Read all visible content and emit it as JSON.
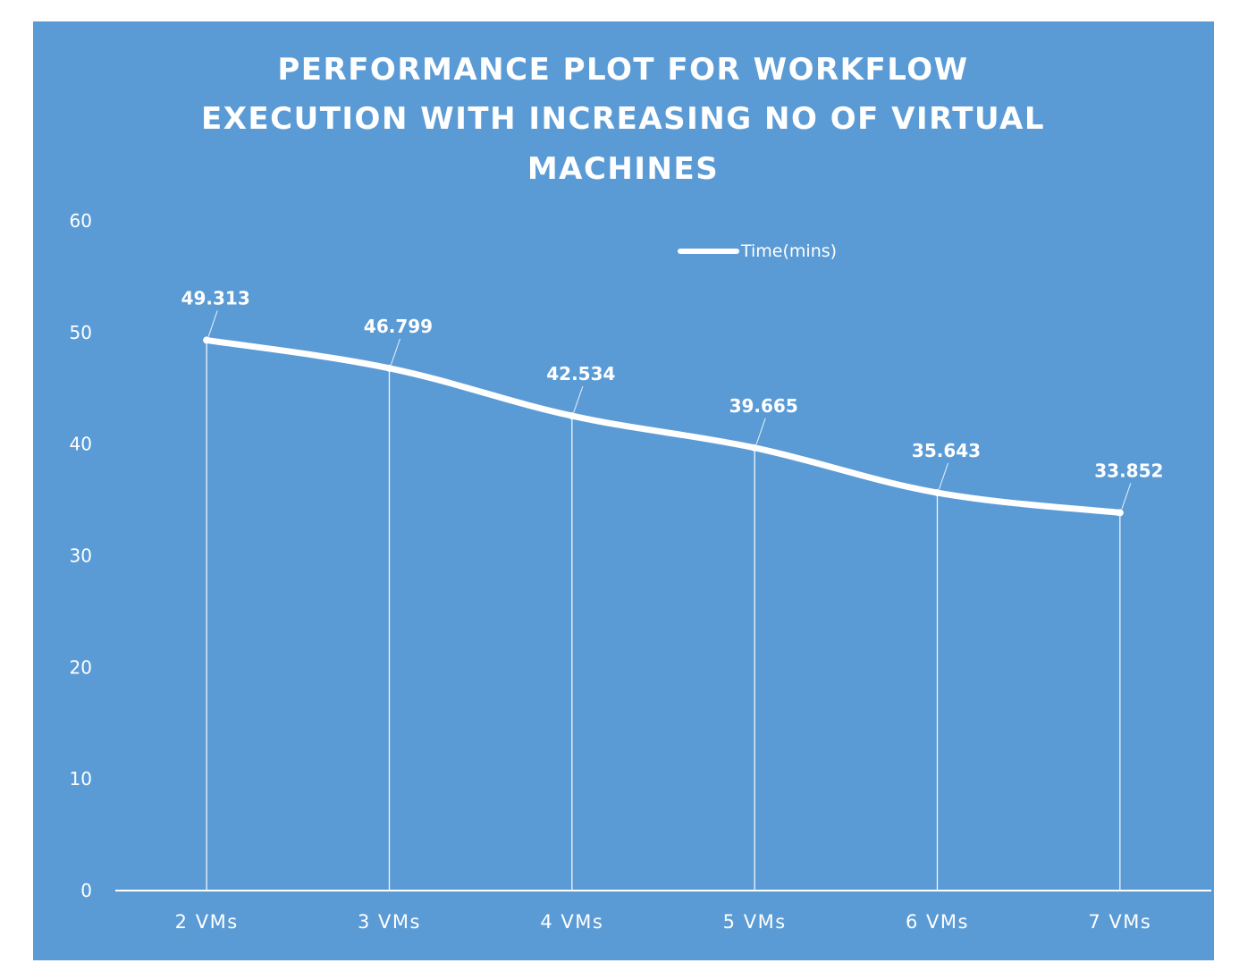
{
  "chart_data": {
    "type": "line",
    "title_lines": [
      "PERFORMANCE  PLOT FOR WORKFLOW",
      "EXECUTION  WITH INCREASING  NO OF VIRTUAL",
      "MACHINES"
    ],
    "categories": [
      "2 VMs",
      "3 VMs",
      "4 VMs",
      "5 VMs",
      "6 VMs",
      "7 VMs"
    ],
    "series": [
      {
        "name": "Time(mins)",
        "values": [
          49.313,
          46.799,
          42.534,
          39.665,
          35.643,
          33.852
        ],
        "labels": [
          "49.313",
          "46.799",
          "42.534",
          "39.665",
          "35.643",
          "33.852"
        ]
      }
    ],
    "y_ticks": [
      "0",
      "10",
      "20",
      "30",
      "40",
      "50",
      "60"
    ],
    "ylim": [
      0,
      60
    ],
    "grid": false,
    "drop_lines": true,
    "legend_position": "top-right",
    "colors": {
      "background": "#5b9bd5",
      "line": "#ffffff",
      "text": "#ffffff"
    }
  }
}
